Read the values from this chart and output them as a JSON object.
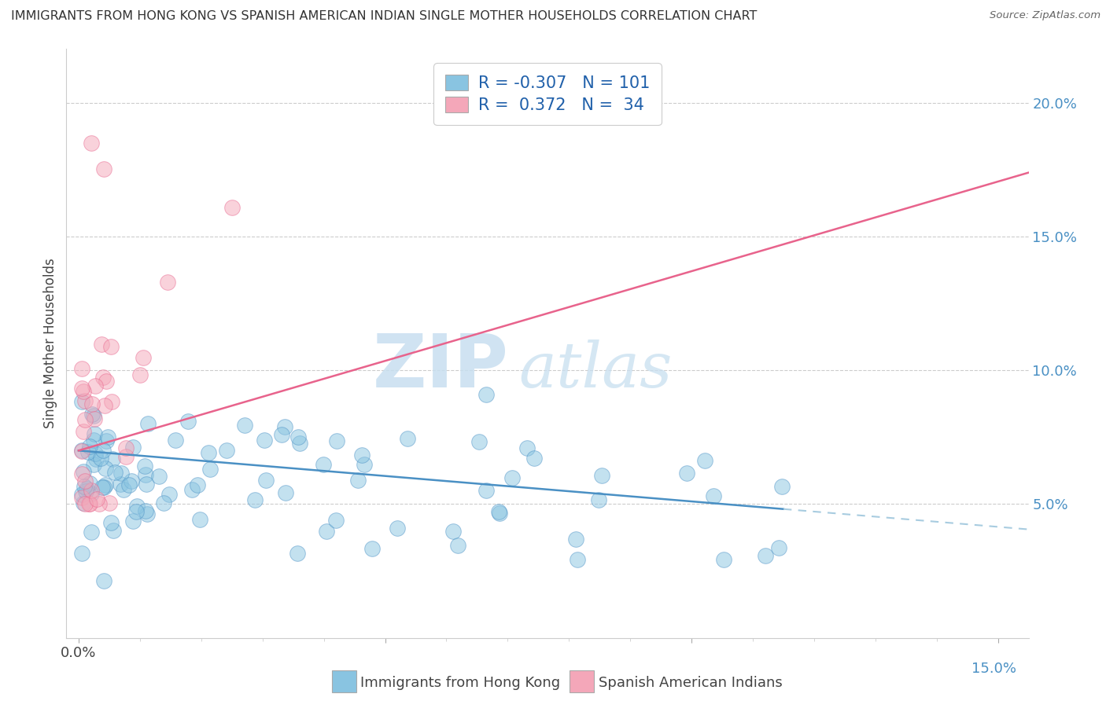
{
  "title": "IMMIGRANTS FROM HONG KONG VS SPANISH AMERICAN INDIAN SINGLE MOTHER HOUSEHOLDS CORRELATION CHART",
  "source": "Source: ZipAtlas.com",
  "xlabel_blue": "Immigrants from Hong Kong",
  "xlabel_pink": "Spanish American Indians",
  "ylabel": "Single Mother Households",
  "R_blue": -0.307,
  "N_blue": 101,
  "R_pink": 0.372,
  "N_pink": 34,
  "xlim": [
    -0.002,
    0.155
  ],
  "ylim": [
    0.0,
    0.22
  ],
  "yticks": [
    0.05,
    0.1,
    0.15,
    0.2
  ],
  "ytick_labels": [
    "5.0%",
    "10.0%",
    "15.0%",
    "20.0%"
  ],
  "color_blue": "#89c4e1",
  "color_pink": "#f4a7b9",
  "line_blue": "#4a90c4",
  "line_pink": "#e8638c",
  "line_dashed_blue": "#a8cce0",
  "watermark_zip": "ZIP",
  "watermark_atlas": "atlas",
  "blue_seed": 42,
  "pink_seed": 17
}
